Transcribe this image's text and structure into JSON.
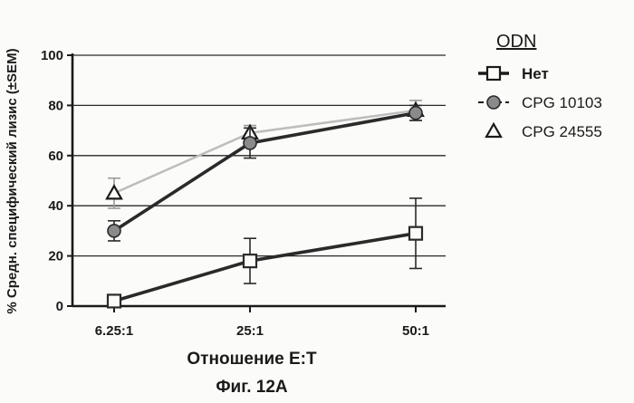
{
  "chart_data": {
    "type": "line",
    "title": "",
    "xlabel": "Отношение E:T",
    "ylabel": "% Средн. специфический лизис (±SEM)",
    "categories": [
      "6.25:1",
      "25:1",
      "50:1"
    ],
    "ylim": [
      0,
      100
    ],
    "yticks": [
      "0",
      "20",
      "40",
      "60",
      "80",
      "100"
    ],
    "grid": "horizontal",
    "legend": {
      "title": "ODN",
      "placement": "right"
    },
    "series": [
      {
        "name": "Нет",
        "marker": "square",
        "color": "#2a2a2a",
        "values": [
          2,
          18,
          29
        ],
        "errors": [
          1,
          9,
          14
        ]
      },
      {
        "name": "CPG 10103",
        "marker": "circle",
        "color": "#2a2a2a",
        "values": [
          30,
          65,
          77
        ],
        "errors": [
          4,
          6,
          3
        ]
      },
      {
        "name": "CPG 24555",
        "marker": "triangle",
        "color": "#bdbdbd",
        "values": [
          45,
          69,
          78
        ],
        "errors": [
          6,
          3,
          4
        ]
      }
    ]
  },
  "figure_label": "Фиг. 12А"
}
